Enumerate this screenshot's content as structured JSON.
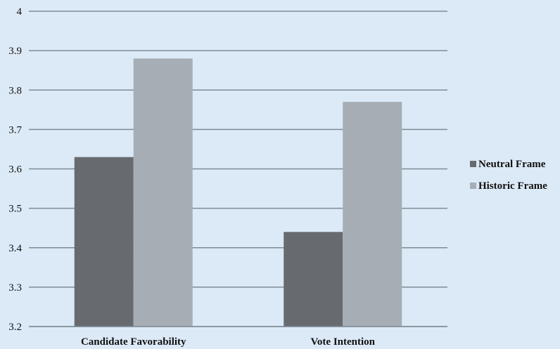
{
  "chart_data": {
    "type": "bar",
    "categories": [
      "Candidate Favorability",
      "Vote Intention"
    ],
    "series": [
      {
        "name": "Neutral Frame",
        "values": [
          3.63,
          3.44
        ],
        "color": "#676b70"
      },
      {
        "name": "Historic Frame",
        "values": [
          3.88,
          3.77
        ],
        "color": "#a6adb5"
      }
    ],
    "title": "",
    "xlabel": "",
    "ylabel": "",
    "ylim": [
      3.2,
      4.0
    ],
    "yticks": [
      "3.2",
      "3.3",
      "3.4",
      "3.5",
      "3.6",
      "3.7",
      "3.8",
      "3.9",
      "4"
    ],
    "grid": true,
    "legend_position": "right"
  }
}
